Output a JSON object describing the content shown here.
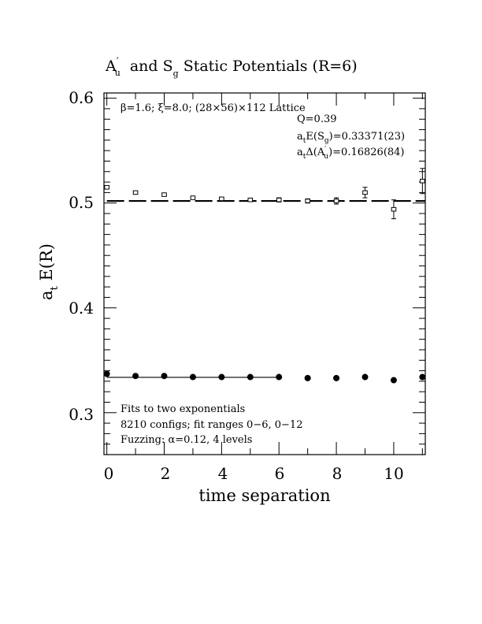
{
  "chart_data": {
    "type": "scatter",
    "title": "A′u  and Sg Static Potentials (R=6)",
    "title_parts": {
      "a": "A",
      "a_prime": "′",
      "a_sub": "u",
      "mid": " and S",
      "s_sub": "g",
      "rest": " Static Potentials (R=6)"
    },
    "xlabel": "time separation",
    "ylabel": {
      "main": "a",
      "sub": "t",
      "rest": " E(R)"
    },
    "xlim": [
      -0.1,
      11.1
    ],
    "ylim": [
      0.26,
      0.605
    ],
    "xticks": [
      0,
      2,
      4,
      6,
      8,
      10
    ],
    "xtick_labels": [
      "0",
      "2",
      "4",
      "6",
      "8",
      "10"
    ],
    "yticks": [
      0.3,
      0.4,
      0.5,
      0.6
    ],
    "ytick_labels": [
      "0.3",
      "0.4",
      "0.5",
      "0.6"
    ],
    "grid": false,
    "annotations": {
      "lattice": "β=1.6; ξ=8.0; (28×56)×112 Lattice",
      "q": "Q=0.39",
      "energy_sg": {
        "pre": "a",
        "pre_sub": "t",
        "mid": "E(S",
        "mid_sub": "g",
        "rest": ")=0.33371(23)"
      },
      "energy_au": {
        "pre": "a",
        "pre_sub": "t",
        "mid": "Δ(A",
        "mid_prime": "′",
        "mid_sub": "u",
        "rest": ")=0.16826(84)"
      },
      "fits": "Fits to two exponentials",
      "configs": "8210 configs; fit ranges 0−6, 0−12",
      "fuzzing": "Fuzzing: α=0.12, 4 levels"
    },
    "series": [
      {
        "marker": "open-square",
        "x": [
          0,
          1,
          2,
          3,
          4,
          5,
          6,
          7,
          8,
          9,
          10,
          11
        ],
        "y": [
          0.515,
          0.51,
          0.508,
          0.505,
          0.504,
          0.503,
          0.503,
          0.502,
          0.502,
          0.51,
          0.494,
          0.521
        ],
        "yerr": [
          0.001,
          0.001,
          0.001,
          0.001,
          0.001,
          0.001,
          0.002,
          0.002,
          0.003,
          0.005,
          0.009,
          0.012
        ]
      },
      {
        "marker": "filled-circle",
        "x": [
          0,
          1,
          2,
          3,
          4,
          5,
          6,
          7,
          8,
          9,
          10,
          11
        ],
        "y": [
          0.337,
          0.335,
          0.335,
          0.334,
          0.334,
          0.334,
          0.334,
          0.333,
          0.333,
          0.334,
          0.331,
          0.334
        ],
        "yerr": [
          0.0005,
          0.0005,
          0.0005,
          0.0005,
          0.0005,
          0.0005,
          0.0006,
          0.0006,
          0.0007,
          0.0008,
          0.001,
          0.0015
        ]
      }
    ],
    "fits": [
      {
        "style": "dashed",
        "x": [
          0,
          11.1
        ],
        "y": [
          0.50197,
          0.50197
        ]
      },
      {
        "style": "solid",
        "x": [
          0,
          6
        ],
        "y": [
          0.33371,
          0.33371
        ]
      }
    ]
  }
}
